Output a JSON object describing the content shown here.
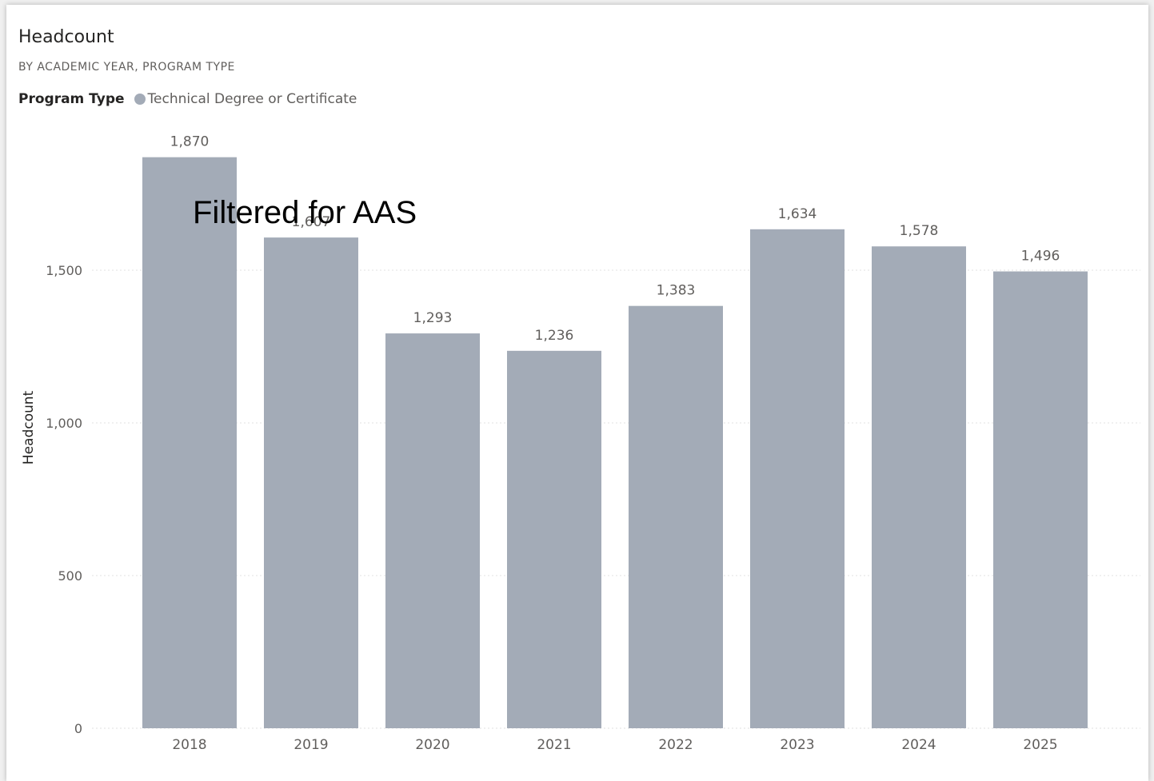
{
  "visual": {
    "title": "Headcount",
    "subtitle": "BY ACADEMIC YEAR, PROGRAM TYPE",
    "more_options_icon": "ellipsis-icon"
  },
  "legend": {
    "title": "Program Type",
    "entries": [
      {
        "label": "Technical Degree or Certificate",
        "color": "#a3abb7"
      }
    ]
  },
  "overlay_text": "Filtered for AAS",
  "chart_data": {
    "type": "bar",
    "title": "Headcount",
    "subtitle": "BY ACADEMIC YEAR, PROGRAM TYPE",
    "xlabel": "",
    "ylabel": "Headcount",
    "categories": [
      "2018",
      "2019",
      "2020",
      "2021",
      "2022",
      "2023",
      "2024",
      "2025"
    ],
    "series": [
      {
        "name": "Technical Degree or Certificate",
        "values": [
          1870,
          1607,
          1293,
          1236,
          1383,
          1634,
          1578,
          1496
        ],
        "value_labels": [
          "1,870",
          "1,607",
          "1,293",
          "1,236",
          "1,383",
          "1,634",
          "1,578",
          "1,496"
        ],
        "color": "#a3abb7"
      }
    ],
    "yticks": [
      0,
      500,
      1000,
      1500
    ],
    "ytick_labels": [
      "0",
      "500",
      "1,000",
      "1,500"
    ],
    "ylim": [
      0,
      1870
    ],
    "grid": "horizontal dotted",
    "legend_position": "top-left"
  }
}
